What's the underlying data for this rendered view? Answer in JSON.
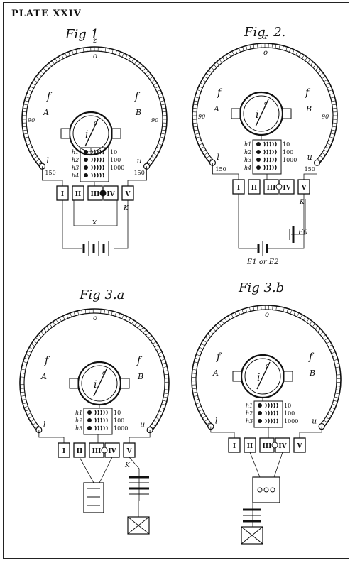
{
  "plate_title": "PLATE XXIV",
  "figures": [
    {
      "title": "Fig 1",
      "labels": {
        "z": "z",
        "zero": "o",
        "f_left": "f",
        "f_right": "f",
        "A": "A",
        "B": "B",
        "deg_left": "90",
        "deg_right": "90",
        "i": "i",
        "c": "c",
        "l": "l",
        "u": "u",
        "n150_left": "150",
        "n150_right": "150",
        "h1": "h1",
        "h2": "h2",
        "h3": "h3",
        "h4": "h4",
        "r10": "10",
        "r100": "100",
        "r1000": "1000",
        "K": "K",
        "x": "x"
      },
      "boxes": [
        "I",
        "II",
        "III",
        "IV",
        "V"
      ]
    },
    {
      "title": "Fig. 2.",
      "labels": {
        "z": "z",
        "zero": "o",
        "f_left": "f",
        "f_right": "f",
        "A": "A",
        "B": "B",
        "deg_left": "90",
        "deg_right": "90",
        "i": "i",
        "c": "c",
        "l": "l",
        "u": "u",
        "n150_left": "150",
        "n150_right": "150",
        "h1": "h1",
        "h2": "h2",
        "h3": "h3",
        "h4": "h4",
        "r10": "10",
        "r100": "100",
        "r1000": "1000",
        "K": "K",
        "E0": "E0",
        "E1": "E1 or E2"
      },
      "boxes": [
        "I",
        "II",
        "III",
        "IV",
        "V"
      ]
    },
    {
      "title": "Fig 3.a",
      "labels": {
        "zero": "o",
        "f_left": "f",
        "f_right": "f",
        "A": "A",
        "B": "B",
        "i": "i",
        "c": "c",
        "l": "l",
        "u": "u",
        "h1": "h1",
        "h2": "h2",
        "h3": "h3",
        "r10": "10",
        "r100": "100",
        "r1000": "1000",
        "K": "K"
      },
      "boxes": [
        "I",
        "II",
        "III",
        "IV",
        "V"
      ]
    },
    {
      "title": "Fig 3.b",
      "labels": {
        "zero": "o",
        "f_left": "f",
        "f_right": "f",
        "A": "A",
        "B": "B",
        "i": "i",
        "c": "c",
        "l": "l",
        "u": "u",
        "h1": "h1",
        "h2": "h2",
        "h3": "h3",
        "r10": "10",
        "r100": "100",
        "r1000": "1000"
      },
      "boxes": [
        "I",
        "II",
        "III",
        "IV",
        "V"
      ]
    }
  ]
}
